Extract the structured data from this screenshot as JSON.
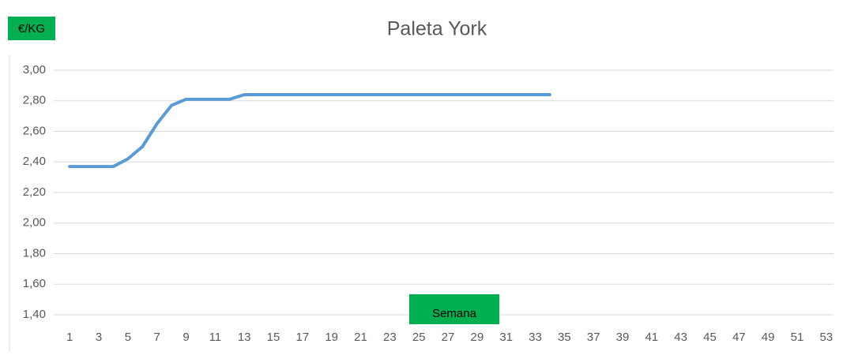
{
  "chart_data": {
    "type": "line",
    "title": "Paleta York",
    "ylabel": "€/KG",
    "xlabel": "Semana",
    "categories": [
      1,
      null,
      3,
      null,
      5,
      null,
      7,
      null,
      9,
      null,
      11,
      null,
      13,
      null,
      15,
      null,
      17,
      null,
      19,
      null,
      21,
      null,
      23,
      null,
      25,
      null,
      27,
      null,
      29,
      null,
      31,
      null,
      33,
      null,
      35,
      null,
      37,
      null,
      39,
      null,
      41,
      null,
      43,
      null,
      45,
      null,
      47,
      null,
      49,
      null,
      51,
      null,
      53
    ],
    "series": [
      {
        "name": "Paleta York",
        "color": "#5b9bd5",
        "values": [
          2.37,
          2.37,
          2.37,
          2.37,
          2.42,
          2.5,
          2.65,
          2.77,
          2.81,
          2.81,
          2.81,
          2.81,
          2.84,
          2.84,
          2.84,
          2.84,
          2.84,
          2.84,
          2.84,
          2.84,
          2.84,
          2.84,
          2.84,
          2.84,
          2.84,
          2.84,
          2.84,
          2.84,
          2.84,
          2.84,
          2.84,
          2.84,
          2.84,
          2.84,
          null,
          null,
          null,
          null,
          null,
          null,
          null,
          null,
          null,
          null,
          null,
          null,
          null,
          null,
          null,
          null,
          null,
          null,
          null
        ]
      }
    ],
    "ylim": [
      1.4,
      3.0
    ],
    "yticks": [
      {
        "value": 1.4,
        "label": "1,40"
      },
      {
        "value": 1.6,
        "label": "1,60"
      },
      {
        "value": 1.8,
        "label": "1,80"
      },
      {
        "value": 2.0,
        "label": "2,00"
      },
      {
        "value": 2.2,
        "label": "2,20"
      },
      {
        "value": 2.4,
        "label": "2,40"
      },
      {
        "value": 2.6,
        "label": "2,60"
      },
      {
        "value": 2.8,
        "label": "2,80"
      },
      {
        "value": 3.0,
        "label": "3,00"
      }
    ],
    "grid": true
  }
}
